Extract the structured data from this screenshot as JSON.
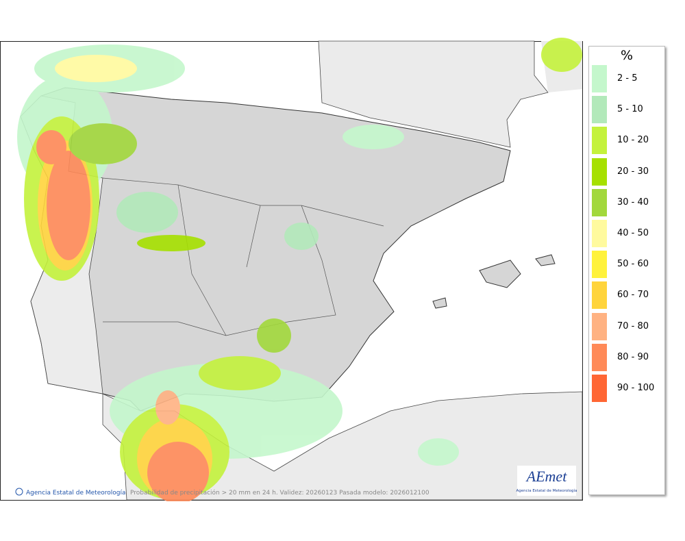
{
  "legend": {
    "title": "%",
    "items": [
      {
        "label": "2 - 5",
        "color": "#c4f7cc"
      },
      {
        "label": "5 - 10",
        "color": "#b2e9ba"
      },
      {
        "label": "10 - 20",
        "color": "#c4f23c"
      },
      {
        "label": "20 - 30",
        "color": "#a6e000"
      },
      {
        "label": "30 - 40",
        "color": "#a2d83c"
      },
      {
        "label": "40 - 50",
        "color": "#fffa9e"
      },
      {
        "label": "50 - 60",
        "color": "#fff23c"
      },
      {
        "label": "60 - 70",
        "color": "#ffd43c"
      },
      {
        "label": "70 - 80",
        "color": "#ffb282"
      },
      {
        "label": "80 - 90",
        "color": "#ff8a58"
      },
      {
        "label": "90 - 100",
        "color": "#ff6634"
      }
    ]
  },
  "footer": {
    "agency": "Agencia Estatal de Meteorología",
    "caption": "Probabilidad de precipitación > 20 mm en 24 h. Validez: 20260123 Pasada modelo: 2026012100"
  },
  "logo": {
    "name": "AEmet",
    "subtitle": "Agencia Estatal de Meteorología"
  }
}
